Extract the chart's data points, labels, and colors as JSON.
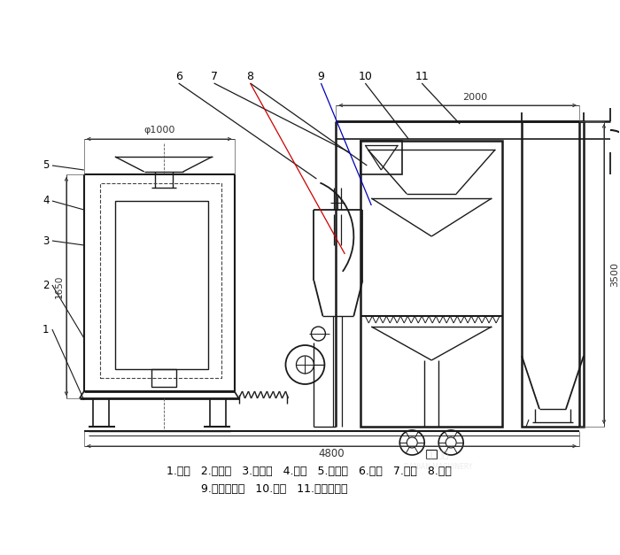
{
  "bg_color": "#ffffff",
  "line_color": "#1a1a1a",
  "label_line1": "1.底座   2.回风道   3.激振器   4.筛网   5.进料斗   6.风机   7.绞龙   8.料仓",
  "label_line2": "9.旋风分离器   10.支架   11.布袋除尘器",
  "dim_1650": "1650",
  "dim_phi1000": "φ1000",
  "dim_2000": "2000",
  "dim_3500": "3500",
  "dim_4800": "4800",
  "fig_width": 7.0,
  "fig_height": 6.27,
  "dpi": 100
}
